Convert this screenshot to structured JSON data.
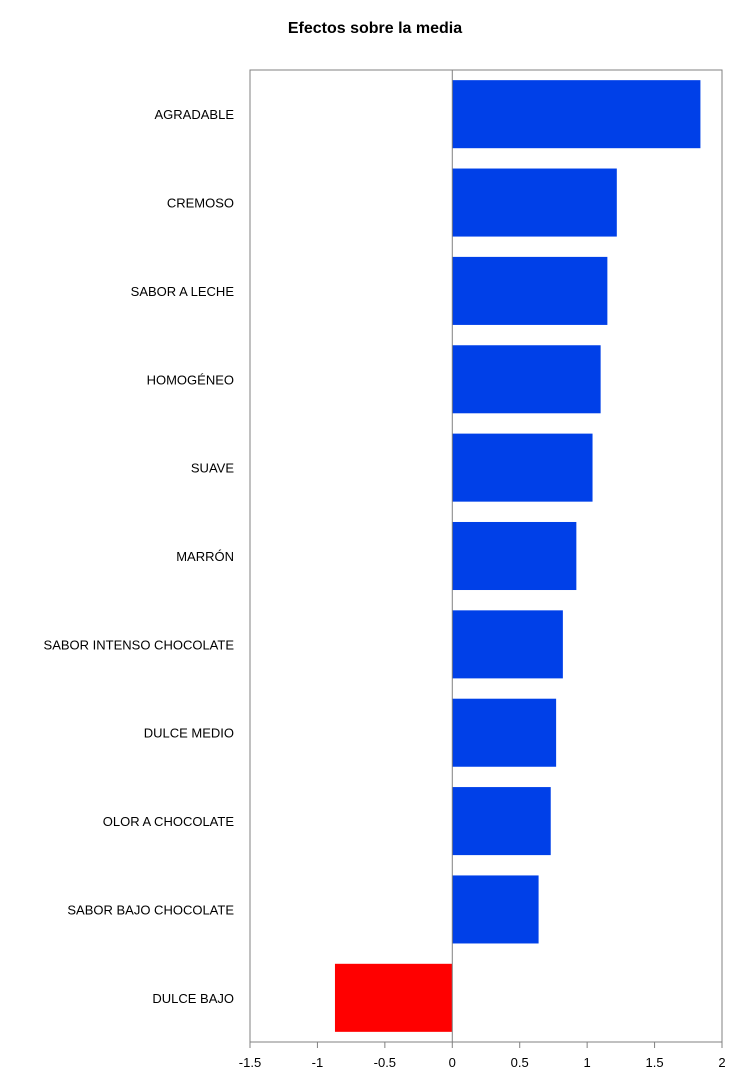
{
  "chart_data": {
    "type": "bar",
    "orientation": "horizontal",
    "title": "Efectos sobre la media",
    "xlabel": "",
    "ylabel": "",
    "xlim": [
      -1.5,
      2
    ],
    "x_ticks": [
      "-1.5",
      "-1",
      "-0.5",
      "0",
      "0.5",
      "1",
      "1.5",
      "2"
    ],
    "categories": [
      "AGRADABLE",
      "CREMOSO",
      "SABOR A LECHE",
      "HOMOGÉNEO",
      "SUAVE",
      "MARRÓN",
      "SABOR INTENSO CHOCOLATE",
      "DULCE MEDIO",
      "OLOR A CHOCOLATE",
      "SABOR BAJO CHOCOLATE",
      "DULCE BAJO"
    ],
    "values": [
      1.84,
      1.22,
      1.15,
      1.1,
      1.04,
      0.92,
      0.82,
      0.77,
      0.73,
      0.64,
      -0.87
    ],
    "colors": {
      "positive": "#0040E8",
      "negative": "#FF0000",
      "axis": "#808080"
    },
    "grid": false,
    "legend": "none"
  }
}
